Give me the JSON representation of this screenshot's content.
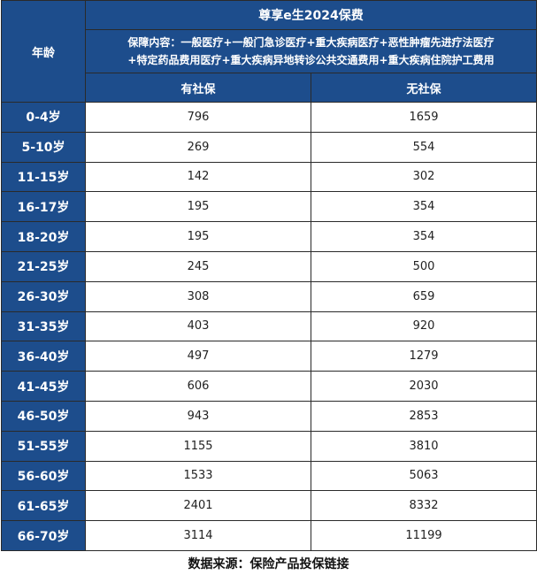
{
  "table": {
    "age_header": "年龄",
    "title": "尊享e生2024保费",
    "coverage": [
      "保障内容：一般医疗+一般门急诊医疗+重大疾病医疗+恶性肿瘤先进疗法医疗",
      "+特定药品费用医疗+重大疾病异地转诊公共交通费用+重大疾病住院护工费用"
    ],
    "columns": [
      "有社保",
      "无社保"
    ],
    "rows": [
      [
        "0-4岁",
        796,
        1659
      ],
      [
        "5-10岁",
        269,
        554
      ],
      [
        "11-15岁",
        142,
        302
      ],
      [
        "16-17岁",
        195,
        354
      ],
      [
        "18-20岁",
        195,
        354
      ],
      [
        "21-25岁",
        245,
        500
      ],
      [
        "26-30岁",
        308,
        659
      ],
      [
        "31-35岁",
        403,
        920
      ],
      [
        "36-40岁",
        497,
        1279
      ],
      [
        "41-45岁",
        606,
        2030
      ],
      [
        "46-50岁",
        943,
        2853
      ],
      [
        "51-55岁",
        1155,
        3810
      ],
      [
        "56-60岁",
        1533,
        5063
      ],
      [
        "61-65岁",
        2401,
        8332
      ],
      [
        "66-70岁",
        3114,
        11199
      ]
    ]
  },
  "footer": "数据来源：保险产品投保链接"
}
